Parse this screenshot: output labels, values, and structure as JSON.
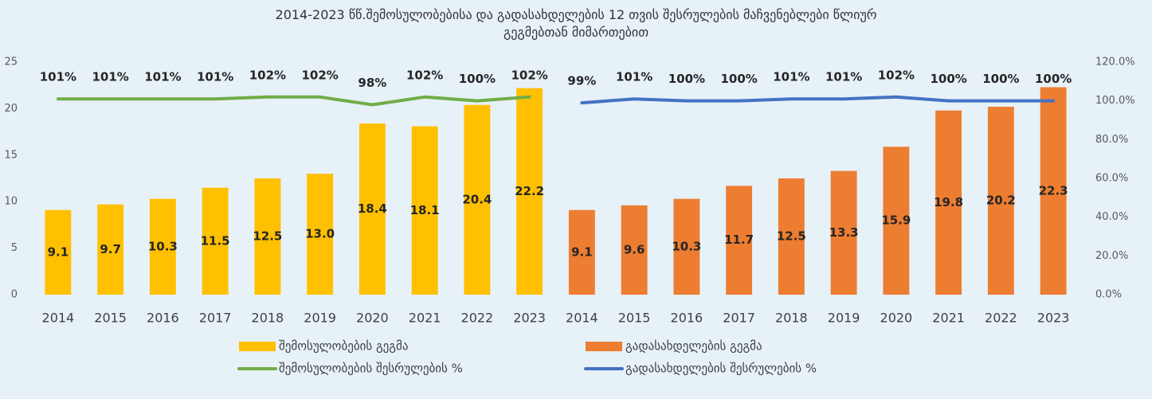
{
  "chart_data": {
    "type": "combo",
    "title": "2014-2023 წწ.შემოსულობებისა და გადასახდელების 12 თვის შესრულების მაჩვენებლები წლიურ გეგმებთან მიმართებით",
    "categories": [
      "2014",
      "2015",
      "2016",
      "2017",
      "2018",
      "2019",
      "2020",
      "2021",
      "2022",
      "2023",
      "2014",
      "2015",
      "2016",
      "2017",
      "2018",
      "2019",
      "2020",
      "2021",
      "2022",
      "2023"
    ],
    "series": [
      {
        "name": "შემოსულობების გეგმა",
        "type": "bar",
        "color": "#FFC000",
        "values": [
          9.1,
          9.7,
          10.3,
          11.5,
          12.5,
          13.0,
          18.4,
          18.1,
          20.4,
          22.2,
          null,
          null,
          null,
          null,
          null,
          null,
          null,
          null,
          null,
          null
        ],
        "value_labels": [
          "9.1",
          "9.7",
          "10.3",
          "11.5",
          "12.5",
          "13.0",
          "18.4",
          "18.1",
          "20.4",
          "22.2",
          null,
          null,
          null,
          null,
          null,
          null,
          null,
          null,
          null,
          null
        ]
      },
      {
        "name": "გადასახდელების გეგმა",
        "type": "bar",
        "color": "#ED7D31",
        "values": [
          null,
          null,
          null,
          null,
          null,
          null,
          null,
          null,
          null,
          null,
          9.1,
          9.6,
          10.3,
          11.7,
          12.5,
          13.3,
          15.9,
          19.8,
          20.2,
          22.3
        ],
        "value_labels": [
          null,
          null,
          null,
          null,
          null,
          null,
          null,
          null,
          null,
          null,
          "9.1",
          "9.6",
          "10.3",
          "11.7",
          "12.5",
          "13.3",
          "15.9",
          "19.8",
          "20.2",
          "22.3"
        ]
      },
      {
        "name": "შემოსულობების შესრულების %",
        "type": "line",
        "axis": "y2",
        "color": "#70AD47",
        "values": [
          101,
          101,
          101,
          101,
          102,
          102,
          98,
          102,
          100,
          102,
          null,
          null,
          null,
          null,
          null,
          null,
          null,
          null,
          null,
          null
        ],
        "value_labels": [
          "101%",
          "101%",
          "101%",
          "101%",
          "102%",
          "102%",
          "98%",
          "102%",
          "100%",
          "102%",
          null,
          null,
          null,
          null,
          null,
          null,
          null,
          null,
          null,
          null
        ]
      },
      {
        "name": "გადასახდელების შესრულების %",
        "type": "line",
        "axis": "y2",
        "color": "#4472C4",
        "values": [
          null,
          null,
          null,
          null,
          null,
          null,
          null,
          null,
          null,
          null,
          99,
          101,
          100,
          100,
          101,
          101,
          102,
          100,
          100,
          100
        ],
        "value_labels": [
          null,
          null,
          null,
          null,
          null,
          null,
          null,
          null,
          null,
          null,
          "99%",
          "101%",
          "100%",
          "100%",
          "101%",
          "101%",
          "102%",
          "100%",
          "100%",
          "100%"
        ]
      }
    ],
    "ylim": [
      0,
      25
    ],
    "yticks": [
      0,
      5,
      10,
      15,
      20,
      25
    ],
    "y2lim": [
      0,
      120
    ],
    "y2ticks": [
      {
        "value": 0,
        "label": "0.0%"
      },
      {
        "value": 20,
        "label": "20.0%"
      },
      {
        "value": 40,
        "label": "40.0%"
      },
      {
        "value": 60,
        "label": "60.0%"
      },
      {
        "value": 80,
        "label": "80.0%"
      },
      {
        "value": 100,
        "label": "100.0%"
      },
      {
        "value": 120,
        "label": "120.0%"
      }
    ],
    "grid": false,
    "legend": "bottom"
  }
}
